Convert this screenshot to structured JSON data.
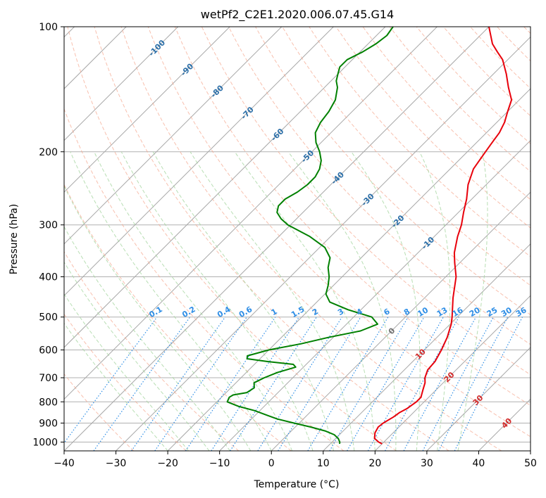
{
  "chart_data": {
    "type": "line",
    "subtype": "skew-t log-p diagram",
    "title": "wetPf2_C2E1.2020.006.07.45.G14",
    "xlabel": "Temperature (°C)",
    "ylabel": "Pressure (hPa)",
    "xlim": [
      -40,
      50
    ],
    "ylim": [
      1050,
      100
    ],
    "y_scale": "log",
    "grid": true,
    "x_ticks": [
      -40,
      -30,
      -20,
      -10,
      0,
      10,
      20,
      30,
      40,
      50
    ],
    "y_ticks": [
      1000,
      900,
      800,
      700,
      600,
      500,
      400,
      300,
      200,
      100
    ],
    "isotherm_labels": [
      -100,
      -90,
      -80,
      -70,
      -60,
      -50,
      -40,
      -30,
      -20,
      -10,
      0,
      10,
      20,
      30,
      40
    ],
    "mixing_ratio_labels": [
      "0.1",
      "0.2",
      "0.4",
      "0.6",
      "1",
      "1.5",
      "2",
      "3",
      "4",
      "6",
      "8",
      "10",
      "13",
      "16",
      "20",
      "25",
      "30",
      "36"
    ],
    "series": [
      {
        "role": "temperature",
        "color": "#e8000b",
        "points": [
          [
            1010,
            20
          ],
          [
            1000,
            19
          ],
          [
            980,
            17.5
          ],
          [
            950,
            16.5
          ],
          [
            920,
            16
          ],
          [
            900,
            16.2
          ],
          [
            870,
            17
          ],
          [
            850,
            17.3
          ],
          [
            830,
            18
          ],
          [
            800,
            18.5
          ],
          [
            780,
            18.5
          ],
          [
            750,
            17.5
          ],
          [
            720,
            16.5
          ],
          [
            700,
            15.5
          ],
          [
            670,
            14.5
          ],
          [
            640,
            14.3
          ],
          [
            600,
            13.3
          ],
          [
            560,
            12
          ],
          [
            520,
            10.2
          ],
          [
            500,
            9
          ],
          [
            450,
            5.5
          ],
          [
            400,
            2
          ],
          [
            370,
            -1
          ],
          [
            350,
            -3
          ],
          [
            320,
            -5.5
          ],
          [
            300,
            -7
          ],
          [
            280,
            -9
          ],
          [
            260,
            -11
          ],
          [
            240,
            -13.5
          ],
          [
            220,
            -15.5
          ],
          [
            210,
            -16
          ],
          [
            200,
            -16.5
          ],
          [
            190,
            -17
          ],
          [
            180,
            -17.5
          ],
          [
            170,
            -18.5
          ],
          [
            160,
            -20
          ],
          [
            150,
            -21.5
          ],
          [
            140,
            -24.5
          ],
          [
            130,
            -27.5
          ],
          [
            120,
            -31
          ],
          [
            115,
            -33.5
          ],
          [
            110,
            -36
          ],
          [
            100,
            -40
          ]
        ]
      },
      {
        "role": "dewpoint",
        "color": "#008000",
        "points": [
          [
            1010,
            11.8
          ],
          [
            1000,
            11.5
          ],
          [
            980,
            10.5
          ],
          [
            960,
            9
          ],
          [
            940,
            6.5
          ],
          [
            920,
            3
          ],
          [
            900,
            -1
          ],
          [
            880,
            -5
          ],
          [
            860,
            -8
          ],
          [
            840,
            -11
          ],
          [
            820,
            -15
          ],
          [
            800,
            -18
          ],
          [
            780,
            -18.5
          ],
          [
            770,
            -18.2
          ],
          [
            760,
            -16
          ],
          [
            740,
            -15.5
          ],
          [
            720,
            -16.5
          ],
          [
            700,
            -15.5
          ],
          [
            680,
            -14
          ],
          [
            660,
            -11.5
          ],
          [
            650,
            -12.5
          ],
          [
            640,
            -18
          ],
          [
            630,
            -22.5
          ],
          [
            620,
            -23
          ],
          [
            600,
            -20
          ],
          [
            580,
            -15
          ],
          [
            560,
            -11
          ],
          [
            540,
            -6
          ],
          [
            520,
            -4
          ],
          [
            500,
            -6.5
          ],
          [
            480,
            -12.5
          ],
          [
            460,
            -17.5
          ],
          [
            440,
            -19.8
          ],
          [
            420,
            -21
          ],
          [
            400,
            -22.5
          ],
          [
            380,
            -24.5
          ],
          [
            360,
            -26
          ],
          [
            340,
            -29
          ],
          [
            320,
            -34
          ],
          [
            300,
            -40.5
          ],
          [
            290,
            -43
          ],
          [
            280,
            -45
          ],
          [
            270,
            -46
          ],
          [
            260,
            -46
          ],
          [
            250,
            -45
          ],
          [
            240,
            -44.5
          ],
          [
            230,
            -44.5
          ],
          [
            220,
            -45.2
          ],
          [
            210,
            -46.5
          ],
          [
            200,
            -48.5
          ],
          [
            190,
            -51
          ],
          [
            180,
            -53
          ],
          [
            170,
            -54
          ],
          [
            160,
            -54.5
          ],
          [
            150,
            -55.5
          ],
          [
            140,
            -57.5
          ],
          [
            135,
            -59
          ],
          [
            130,
            -60
          ],
          [
            125,
            -61
          ],
          [
            120,
            -61
          ],
          [
            115,
            -59.5
          ],
          [
            110,
            -58.5
          ],
          [
            105,
            -58
          ],
          [
            100,
            -58.5
          ]
        ]
      }
    ]
  }
}
